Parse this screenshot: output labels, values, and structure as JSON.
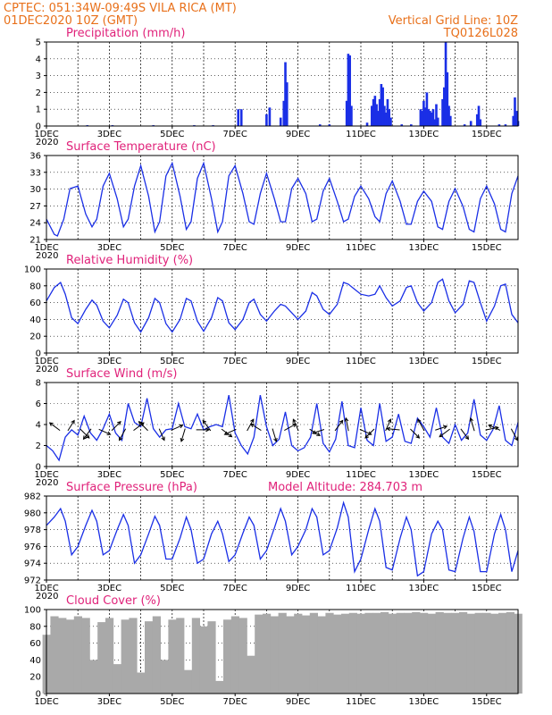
{
  "header": {
    "line1": "CPTEC:   051:34W-09:49S   VILA RICA (MT)",
    "line2": "01DEC2020  10Z (GMT)",
    "grid_note": "Vertical Grid Line: 10Z",
    "code": "TQ0126L028"
  },
  "x_axis": {
    "day_labels": [
      "1DEC",
      "3DEC",
      "5DEC",
      "7DEC",
      "9DEC",
      "11DEC",
      "13DEC",
      "15DEC"
    ],
    "year_label": "2020",
    "days_shown": 15
  },
  "colors": {
    "header": "#e8701a",
    "panel_title": "#e0227a",
    "series": "#1a2fe6",
    "cloud": "#a9a9a9"
  },
  "chart_data": [
    {
      "type": "bar",
      "title": "Precipitation (mm/h)",
      "ylim": [
        0,
        5
      ],
      "yticks": [
        "0",
        "1",
        "2",
        "3",
        "4",
        "5"
      ],
      "bars": [
        {
          "day": 1.3,
          "value": 0.05
        },
        {
          "day": 2.1,
          "value": 0.05
        },
        {
          "day": 3.4,
          "value": 0.05
        },
        {
          "day": 4.7,
          "value": 0.05
        },
        {
          "day": 5.3,
          "value": 0.05
        },
        {
          "day": 6.1,
          "value": 1.0
        },
        {
          "day": 6.2,
          "value": 1.0
        },
        {
          "day": 7.0,
          "value": 0.7
        },
        {
          "day": 7.1,
          "value": 1.1
        },
        {
          "day": 7.45,
          "value": 0.5
        },
        {
          "day": 7.55,
          "value": 1.5
        },
        {
          "day": 7.6,
          "value": 3.8
        },
        {
          "day": 7.65,
          "value": 2.6
        },
        {
          "day": 8.7,
          "value": 0.1
        },
        {
          "day": 9.0,
          "value": 0.1
        },
        {
          "day": 9.55,
          "value": 1.5
        },
        {
          "day": 9.6,
          "value": 4.3
        },
        {
          "day": 9.65,
          "value": 4.2
        },
        {
          "day": 9.7,
          "value": 1.2
        },
        {
          "day": 10.2,
          "value": 0.2
        },
        {
          "day": 10.35,
          "value": 1.2
        },
        {
          "day": 10.4,
          "value": 1.6
        },
        {
          "day": 10.45,
          "value": 1.8
        },
        {
          "day": 10.5,
          "value": 1.3
        },
        {
          "day": 10.55,
          "value": 0.9
        },
        {
          "day": 10.6,
          "value": 1.6
        },
        {
          "day": 10.65,
          "value": 2.5
        },
        {
          "day": 10.7,
          "value": 2.3
        },
        {
          "day": 10.75,
          "value": 1.2
        },
        {
          "day": 10.8,
          "value": 0.8
        },
        {
          "day": 10.85,
          "value": 1.6
        },
        {
          "day": 10.9,
          "value": 1.0
        },
        {
          "day": 10.95,
          "value": 0.5
        },
        {
          "day": 11.3,
          "value": 0.1
        },
        {
          "day": 11.6,
          "value": 0.1
        },
        {
          "day": 11.9,
          "value": 1.0
        },
        {
          "day": 11.95,
          "value": 0.9
        },
        {
          "day": 12.0,
          "value": 1.5
        },
        {
          "day": 12.05,
          "value": 1.1
        },
        {
          "day": 12.1,
          "value": 2.0
        },
        {
          "day": 12.15,
          "value": 1.0
        },
        {
          "day": 12.2,
          "value": 0.9
        },
        {
          "day": 12.25,
          "value": 0.8
        },
        {
          "day": 12.3,
          "value": 1.0
        },
        {
          "day": 12.35,
          "value": 0.4
        },
        {
          "day": 12.4,
          "value": 1.3
        },
        {
          "day": 12.45,
          "value": 0.5
        },
        {
          "day": 12.6,
          "value": 1.6
        },
        {
          "day": 12.65,
          "value": 2.3
        },
        {
          "day": 12.7,
          "value": 5.0
        },
        {
          "day": 12.75,
          "value": 3.2
        },
        {
          "day": 12.8,
          "value": 1.2
        },
        {
          "day": 12.85,
          "value": 0.6
        },
        {
          "day": 13.3,
          "value": 0.1
        },
        {
          "day": 13.5,
          "value": 0.3
        },
        {
          "day": 13.7,
          "value": 0.7
        },
        {
          "day": 13.75,
          "value": 1.2
        },
        {
          "day": 13.8,
          "value": 0.4
        },
        {
          "day": 14.4,
          "value": 0.1
        },
        {
          "day": 14.6,
          "value": 0.1
        },
        {
          "day": 14.85,
          "value": 0.6
        },
        {
          "day": 14.9,
          "value": 1.7
        },
        {
          "day": 14.95,
          "value": 0.9
        },
        {
          "day": 15.0,
          "value": 0.3
        }
      ]
    },
    {
      "type": "line",
      "title": "Surface Temperature (nC)",
      "ylim": [
        20.5,
        37
      ],
      "yticks": [
        "21",
        "24",
        "27",
        "30",
        "33",
        "36"
      ],
      "x": [
        0.0,
        0.25,
        0.35,
        0.55,
        0.75,
        1.0,
        1.25,
        1.45,
        1.6,
        1.8,
        2.0,
        2.25,
        2.45,
        2.6,
        2.8,
        3.0,
        3.25,
        3.45,
        3.6,
        3.8,
        4.0,
        4.25,
        4.45,
        4.6,
        4.8,
        5.0,
        5.25,
        5.45,
        5.6,
        5.8,
        6.0,
        6.25,
        6.45,
        6.6,
        6.8,
        7.0,
        7.25,
        7.45,
        7.6,
        7.8,
        8.0,
        8.25,
        8.45,
        8.6,
        8.8,
        9.0,
        9.25,
        9.45,
        9.6,
        9.8,
        10.0,
        10.25,
        10.45,
        10.6,
        10.8,
        11.0,
        11.25,
        11.45,
        11.6,
        11.8,
        12.0,
        12.25,
        12.45,
        12.6,
        12.8,
        13.0,
        13.25,
        13.45,
        13.6,
        13.8,
        14.0,
        14.25,
        14.45,
        14.6,
        14.8,
        15.0
      ],
      "y": [
        24.5,
        21.5,
        21.2,
        24.5,
        30.5,
        31.0,
        25.5,
        23.0,
        24.5,
        31.0,
        33.5,
        28.5,
        23.0,
        24.5,
        31.0,
        35.0,
        29.0,
        22.0,
        24.0,
        33.0,
        35.5,
        29.0,
        22.5,
        24.0,
        32.5,
        35.5,
        28.5,
        22.0,
        24.0,
        33.0,
        35.0,
        29.5,
        24.0,
        23.5,
        29.5,
        33.5,
        28.5,
        24.0,
        24.0,
        30.5,
        32.5,
        29.5,
        24.0,
        24.5,
        30.0,
        32.5,
        28.0,
        24.0,
        24.5,
        29.0,
        31.0,
        28.5,
        25.0,
        24.0,
        29.5,
        32.0,
        28.0,
        23.5,
        23.5,
        28.0,
        30.0,
        28.0,
        23.0,
        22.5,
        28.0,
        30.5,
        27.0,
        22.5,
        22.0,
        28.5,
        31.0,
        27.5,
        22.5,
        22.0,
        29.5,
        33.0
      ]
    },
    {
      "type": "line",
      "title": "Relative Humidity (%)",
      "ylim": [
        0,
        100
      ],
      "yticks": [
        "0",
        "20",
        "40",
        "60",
        "80",
        "100"
      ],
      "x": [
        0.0,
        0.25,
        0.45,
        0.6,
        0.8,
        1.0,
        1.25,
        1.45,
        1.6,
        1.8,
        2.0,
        2.25,
        2.45,
        2.6,
        2.8,
        3.0,
        3.25,
        3.45,
        3.6,
        3.8,
        4.0,
        4.25,
        4.45,
        4.6,
        4.8,
        5.0,
        5.25,
        5.45,
        5.6,
        5.8,
        6.0,
        6.25,
        6.45,
        6.6,
        6.8,
        7.0,
        7.25,
        7.45,
        7.6,
        7.8,
        8.0,
        8.25,
        8.45,
        8.6,
        8.8,
        9.0,
        9.25,
        9.45,
        9.6,
        9.8,
        10.0,
        10.25,
        10.45,
        10.6,
        10.8,
        11.0,
        11.25,
        11.45,
        11.6,
        11.8,
        12.0,
        12.25,
        12.45,
        12.6,
        12.8,
        13.0,
        13.25,
        13.45,
        13.6,
        13.8,
        14.0,
        14.25,
        14.45,
        14.6,
        14.8,
        15.0
      ],
      "y": [
        62.0,
        78.0,
        84.0,
        70.0,
        42.0,
        35.0,
        52.0,
        63.0,
        57.0,
        38.0,
        30.0,
        45.0,
        64.0,
        60.0,
        36.0,
        25.0,
        42.0,
        65.0,
        60.0,
        35.0,
        25.0,
        40.0,
        65.0,
        62.0,
        38.0,
        26.0,
        42.0,
        66.0,
        62.0,
        36.0,
        28.0,
        40.0,
        60.0,
        64.0,
        46.0,
        38.0,
        50.0,
        58.0,
        56.0,
        48.0,
        40.0,
        50.0,
        72.0,
        68.0,
        52.0,
        46.0,
        58.0,
        84.0,
        82.0,
        76.0,
        70.0,
        68.0,
        70.0,
        80.0,
        66.0,
        56.0,
        62.0,
        78.0,
        80.0,
        60.0,
        50.0,
        60.0,
        84.0,
        88.0,
        62.0,
        48.0,
        58.0,
        86.0,
        84.0,
        60.0,
        38.0,
        56.0,
        80.0,
        82.0,
        46.0,
        36.0
      ]
    },
    {
      "type": "line",
      "title": "Surface Wind (m/s)",
      "ylim": [
        0,
        8
      ],
      "yticks": [
        "0",
        "2",
        "4",
        "6",
        "8"
      ],
      "x": [
        0.0,
        0.2,
        0.4,
        0.6,
        0.8,
        1.0,
        1.2,
        1.4,
        1.6,
        1.8,
        2.0,
        2.2,
        2.4,
        2.6,
        2.8,
        3.0,
        3.2,
        3.4,
        3.6,
        3.8,
        4.0,
        4.2,
        4.4,
        4.6,
        4.8,
        5.0,
        5.2,
        5.4,
        5.6,
        5.8,
        6.0,
        6.2,
        6.4,
        6.6,
        6.8,
        7.0,
        7.2,
        7.4,
        7.6,
        7.8,
        8.0,
        8.2,
        8.4,
        8.6,
        8.8,
        9.0,
        9.2,
        9.4,
        9.6,
        9.8,
        10.0,
        10.2,
        10.4,
        10.6,
        10.8,
        11.0,
        11.2,
        11.4,
        11.6,
        11.8,
        12.0,
        12.2,
        12.4,
        12.6,
        12.8,
        13.0,
        13.2,
        13.4,
        13.6,
        13.8,
        14.0,
        14.2,
        14.4,
        14.6,
        14.8,
        15.0
      ],
      "y": [
        2.0,
        1.5,
        0.6,
        2.8,
        3.5,
        3.0,
        4.8,
        3.2,
        2.5,
        3.6,
        5.0,
        3.2,
        2.5,
        6.0,
        4.2,
        3.8,
        6.5,
        3.6,
        2.8,
        3.5,
        3.6,
        6.0,
        3.8,
        3.6,
        5.0,
        3.5,
        3.8,
        4.0,
        3.8,
        6.8,
        3.2,
        2.0,
        1.2,
        2.8,
        6.8,
        3.8,
        2.0,
        2.6,
        5.2,
        2.0,
        1.5,
        1.8,
        2.8,
        6.0,
        2.2,
        1.4,
        2.6,
        6.2,
        2.0,
        1.8,
        5.6,
        2.5,
        2.0,
        6.0,
        2.4,
        2.8,
        5.0,
        2.4,
        2.2,
        4.6,
        3.8,
        2.8,
        5.6,
        2.8,
        2.2,
        4.0,
        2.5,
        3.2,
        6.4,
        3.0,
        2.5,
        3.5,
        5.8,
        2.5,
        2.0,
        4.2
      ],
      "wind_arrows": [
        {
          "day": 0.4,
          "u": -0.8,
          "v": 0.6
        },
        {
          "day": 0.7,
          "u": 0.5,
          "v": 0.8
        },
        {
          "day": 1.1,
          "u": 0.7,
          "v": -0.7
        },
        {
          "day": 1.4,
          "u": -0.6,
          "v": -0.8
        },
        {
          "day": 1.7,
          "u": 0.9,
          "v": -0.4
        },
        {
          "day": 2.1,
          "u": 0.7,
          "v": 0.7
        },
        {
          "day": 2.5,
          "u": -0.5,
          "v": -0.9
        },
        {
          "day": 2.8,
          "u": 0.8,
          "v": 0.6
        },
        {
          "day": 3.2,
          "u": -0.7,
          "v": 0.7
        },
        {
          "day": 3.6,
          "u": 0.4,
          "v": -0.9
        },
        {
          "day": 4.0,
          "u": 0.9,
          "v": 0.4
        },
        {
          "day": 4.4,
          "u": -0.3,
          "v": -1.0
        },
        {
          "day": 4.8,
          "u": 1.0,
          "v": 0.0
        },
        {
          "day": 5.2,
          "u": -0.6,
          "v": 0.8
        },
        {
          "day": 5.6,
          "u": 0.8,
          "v": -0.6
        },
        {
          "day": 6.0,
          "u": -0.9,
          "v": -0.4
        },
        {
          "day": 6.4,
          "u": 0.5,
          "v": 0.9
        },
        {
          "day": 6.8,
          "u": -0.8,
          "v": 0.5
        },
        {
          "day": 7.2,
          "u": 0.3,
          "v": -1.0
        },
        {
          "day": 7.6,
          "u": 0.9,
          "v": 0.5
        },
        {
          "day": 8.0,
          "u": -0.4,
          "v": 0.9
        },
        {
          "day": 8.4,
          "u": 0.8,
          "v": -0.5
        },
        {
          "day": 8.8,
          "u": -0.9,
          "v": -0.3
        },
        {
          "day": 9.2,
          "u": 0.6,
          "v": 0.8
        },
        {
          "day": 9.6,
          "u": -0.2,
          "v": 1.0
        },
        {
          "day": 10.0,
          "u": 0.9,
          "v": -0.4
        },
        {
          "day": 10.4,
          "u": -0.7,
          "v": -0.7
        },
        {
          "day": 10.8,
          "u": 0.4,
          "v": 0.9
        },
        {
          "day": 11.2,
          "u": -1.0,
          "v": 0.1
        },
        {
          "day": 11.6,
          "u": 0.7,
          "v": -0.7
        },
        {
          "day": 12.0,
          "u": -0.5,
          "v": 0.9
        },
        {
          "day": 12.4,
          "u": 0.9,
          "v": 0.3
        },
        {
          "day": 12.8,
          "u": -0.8,
          "v": -0.6
        },
        {
          "day": 13.2,
          "u": 0.6,
          "v": -0.8
        },
        {
          "day": 13.6,
          "u": -0.3,
          "v": 1.0
        },
        {
          "day": 14.0,
          "u": 1.0,
          "v": 0.2
        },
        {
          "day": 14.4,
          "u": -0.9,
          "v": 0.4
        },
        {
          "day": 14.8,
          "u": 0.5,
          "v": -0.9
        }
      ]
    },
    {
      "type": "line",
      "title": "Surface Pressure (hPa)",
      "annotation": "Model Altitude: 284.703  m",
      "ylim": [
        972,
        982
      ],
      "yticks": [
        "972",
        "974",
        "976",
        "978",
        "980",
        "982"
      ],
      "x": [
        0.0,
        0.25,
        0.45,
        0.6,
        0.8,
        1.0,
        1.25,
        1.45,
        1.6,
        1.8,
        2.0,
        2.25,
        2.45,
        2.6,
        2.8,
        3.0,
        3.25,
        3.45,
        3.6,
        3.8,
        4.0,
        4.25,
        4.45,
        4.6,
        4.8,
        5.0,
        5.25,
        5.45,
        5.6,
        5.8,
        6.0,
        6.25,
        6.45,
        6.6,
        6.8,
        7.0,
        7.25,
        7.45,
        7.6,
        7.8,
        8.0,
        8.25,
        8.45,
        8.6,
        8.8,
        9.0,
        9.25,
        9.45,
        9.6,
        9.8,
        10.0,
        10.25,
        10.45,
        10.6,
        10.8,
        11.0,
        11.25,
        11.45,
        11.6,
        11.8,
        12.0,
        12.25,
        12.45,
        12.6,
        12.8,
        13.0,
        13.25,
        13.45,
        13.6,
        13.8,
        14.0,
        14.25,
        14.45,
        14.6,
        14.8,
        15.0
      ],
      "y": [
        978.5,
        979.5,
        980.5,
        979.0,
        975.0,
        976.0,
        978.5,
        980.3,
        979.0,
        975.0,
        975.5,
        978.0,
        979.8,
        978.5,
        974.0,
        975.0,
        977.5,
        979.6,
        978.5,
        974.5,
        974.5,
        977.0,
        979.5,
        978.0,
        974.0,
        974.5,
        977.5,
        979.0,
        977.5,
        974.2,
        975.0,
        977.6,
        979.5,
        978.5,
        974.5,
        975.5,
        978.2,
        980.5,
        979.0,
        975.0,
        976.0,
        978.0,
        980.5,
        979.5,
        975.0,
        975.5,
        978.2,
        981.2,
        979.5,
        973.0,
        974.5,
        978.0,
        980.5,
        979.0,
        973.5,
        973.2,
        977.0,
        979.5,
        978.0,
        972.5,
        973.0,
        977.5,
        979.0,
        978.0,
        973.2,
        973.0,
        977.0,
        979.5,
        977.8,
        973.0,
        973.0,
        977.5,
        979.8,
        978.0,
        973.0,
        975.5
      ]
    },
    {
      "type": "bar",
      "title": "Cloud Cover (%)",
      "ylim": [
        0,
        100
      ],
      "yticks": [
        "0",
        "20",
        "40",
        "60",
        "80",
        "100"
      ],
      "x": [
        0.0,
        0.25,
        0.5,
        0.75,
        1.0,
        1.25,
        1.5,
        1.75,
        2.0,
        2.25,
        2.5,
        2.75,
        3.0,
        3.25,
        3.5,
        3.75,
        4.0,
        4.25,
        4.5,
        4.75,
        5.0,
        5.25,
        5.5,
        5.75,
        6.0,
        6.25,
        6.5,
        6.75,
        7.0,
        7.25,
        7.5,
        7.75,
        8.0,
        8.25,
        8.5,
        8.75,
        9.0,
        9.25,
        9.5,
        9.75,
        10.0,
        10.25,
        10.5,
        10.75,
        11.0,
        11.25,
        11.5,
        11.75,
        12.0,
        12.25,
        12.5,
        12.75,
        13.0,
        13.25,
        13.5,
        13.75,
        14.0,
        14.25,
        14.5,
        14.75,
        15.0
      ],
      "values": [
        70,
        92,
        90,
        88,
        92,
        90,
        40,
        85,
        90,
        35,
        88,
        90,
        25,
        86,
        92,
        40,
        88,
        90,
        28,
        90,
        80,
        86,
        15,
        88,
        92,
        90,
        45,
        94,
        95,
        92,
        96,
        92,
        95,
        93,
        96,
        92,
        96,
        94,
        95,
        96,
        95,
        96,
        96,
        97,
        95,
        96,
        96,
        97,
        96,
        95,
        97,
        96,
        96,
        97,
        95,
        96,
        96,
        95,
        96,
        97,
        95
      ]
    }
  ]
}
